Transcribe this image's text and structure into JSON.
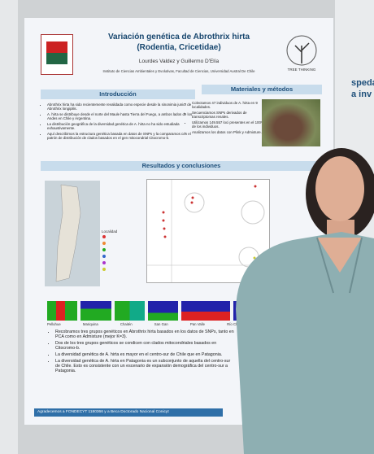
{
  "poster": {
    "title": "Variación genética de Abrothrix hirta",
    "subtitle": "(Rodentia, Cricetidae)",
    "authors": "Lourdes Valdez y Guillermo D'Elía",
    "affiliation": "Instituto de Ciencias Ambientales y Evolutivas, Facultad de Ciencias, Universidad Austral De Chile",
    "logo_text": "TREE THINKING",
    "introduction": {
      "heading": "Introducción",
      "bullets": [
        "Abrothrix hirta ha sido recientemente revalidada como especie desde la sinonimia junior de Abrothrix longipilis.",
        "A. hirta se distribuye desde el norte del Maule hasta Tierra del Fuego, a ambos lados de los Andes en Chile y Argentina.",
        "La distribución geográfica de la diversidad genética de A. hirta no ha sido estudiada exhaustivamente.",
        "Aquí describimos la estructura genética basada en datos de SNPs y la comparamos con el patrón de distribución de clados basados en el gen mitocondrial Citocromo-b."
      ]
    },
    "methods": {
      "heading": "Materiales y métodos",
      "bullets": [
        "Colectamos 47 individuos de A. hirta en 9 localidades.",
        "Secuenciamos SNPs derivados de transcriptomas renales.",
        "Utilizamos 149.557 loci presentes en el 100% de los individuos.",
        "Analizamos los datos con Plink y Admixture."
      ]
    },
    "results": {
      "heading": "Resultados y conclusiones",
      "legend_title": "Localidad",
      "populations": [
        "Pelluhue",
        "Mariquina",
        "Chaitén",
        "San Gan",
        "Pan Valle",
        "Río Chico"
      ],
      "bullets": [
        "Recobramos tres grupos genéticos en Abrothrix hirta basados en los datos de SNPs, tanto en PCA como en Admixture (mejor K=3).",
        "Dos de los tres grupos genéticos se condicen con clados mitocondriales basados en Citocromo-b.",
        "La diversidad genética de A. hirta es mayor en el centro-sur de Chile que en Patagonia.",
        "La diversidad genética de A. hirta en Patagonia es un subconjunto de aquella del centro-sur de Chile. Esto es consistente con un escenario de expansión demográfica del centro-sur a Patagonia."
      ]
    },
    "acknowledgement": "Agradecemos a FONDECYT 1180366 y a Beca Doctorado Nacional Conicyt"
  },
  "neighbor_poster": {
    "lines": [
      "speda",
      "a inv"
    ]
  }
}
